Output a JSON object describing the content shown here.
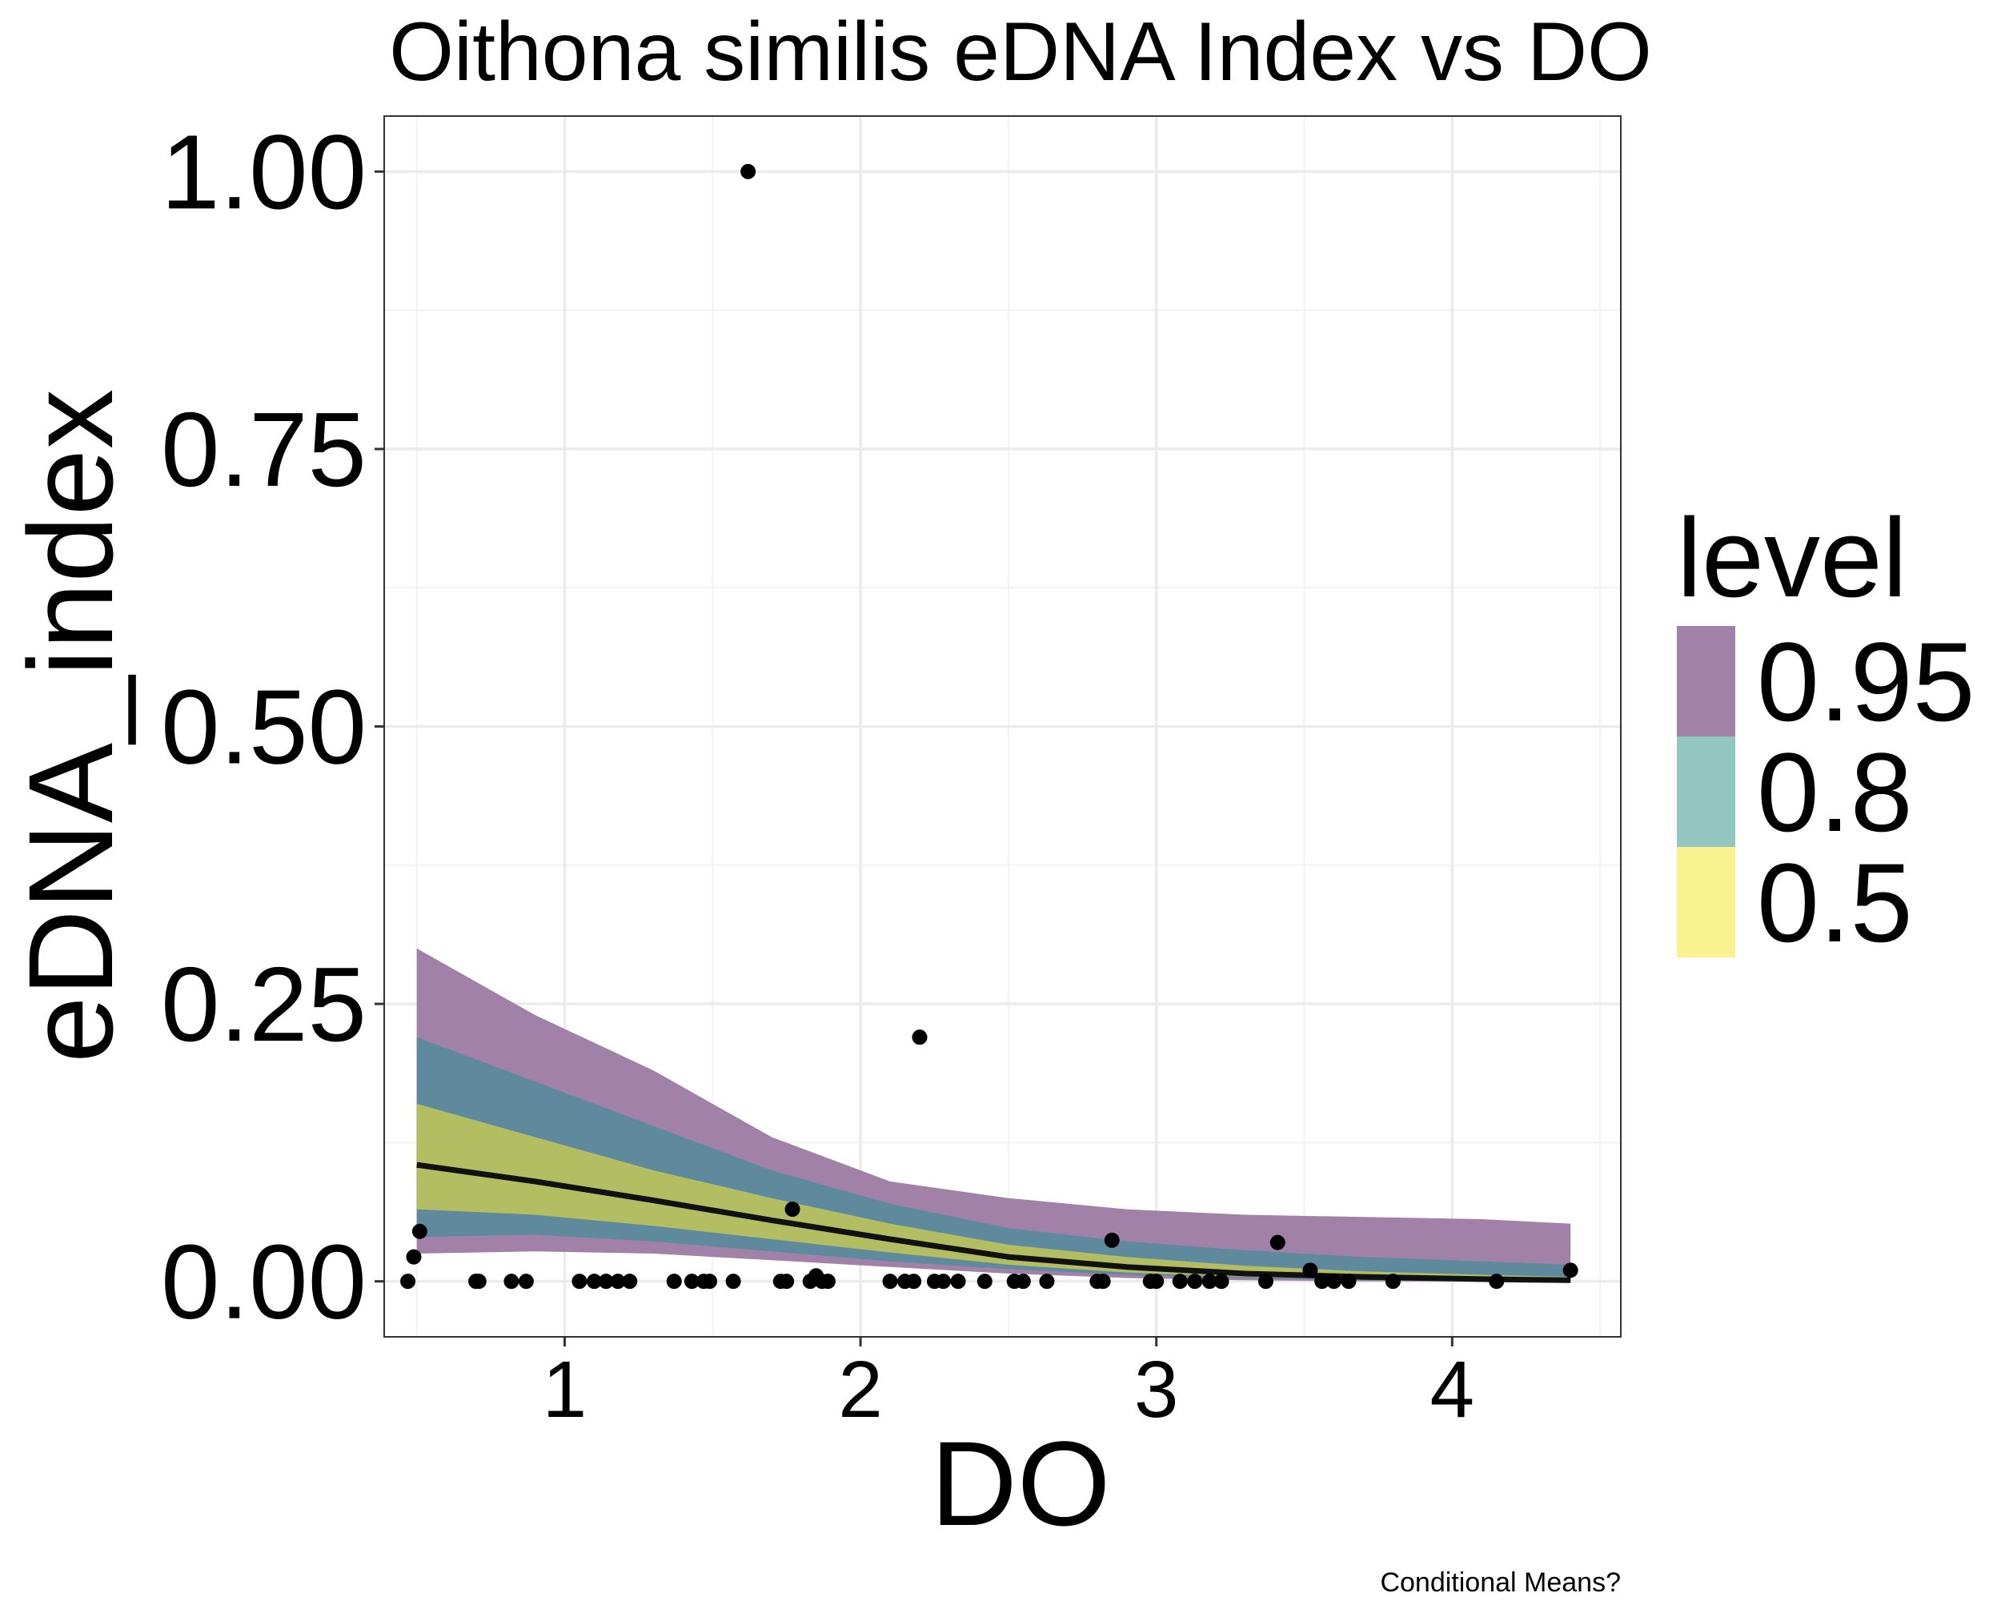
{
  "chart_data": {
    "type": "line",
    "title": "Oithona similis eDNA Index vs DO",
    "xlabel": "DO",
    "ylabel": "eDNA_index",
    "caption": "Conditional Means?",
    "xlim": [
      0.39,
      4.57
    ],
    "ylim": [
      -0.05,
      1.05
    ],
    "x_ticks": [
      1,
      2,
      3,
      4
    ],
    "x_tick_labels": [
      "1",
      "2",
      "3",
      "4"
    ],
    "y_ticks": [
      0,
      0.25,
      0.5,
      0.75,
      1.0
    ],
    "y_tick_labels": [
      "0.00",
      "0.25",
      "0.50",
      "0.75",
      "1.00"
    ],
    "grid": true,
    "legend": {
      "title": "level",
      "position": "right",
      "items": [
        {
          "label": "0.95",
          "color": "#A181A8"
        },
        {
          "label": "0.8",
          "color": "#93C6C1"
        },
        {
          "label": "0.5",
          "color": "#FAF290"
        }
      ]
    },
    "band_colors": {
      "0.95": "#A181A8",
      "0.8": "#5F8A9D",
      "0.5": "#B3BE63"
    },
    "fit_line": {
      "x": [
        0.5,
        0.9,
        1.3,
        1.7,
        2.1,
        2.5,
        2.9,
        3.3,
        3.7,
        4.1,
        4.4
      ],
      "y": [
        0.105,
        0.09,
        0.073,
        0.055,
        0.038,
        0.022,
        0.013,
        0.007,
        0.004,
        0.002,
        0.001
      ]
    },
    "bands": [
      {
        "level": "0.95",
        "x": [
          0.5,
          0.9,
          1.3,
          1.7,
          2.1,
          2.5,
          2.9,
          3.3,
          3.7,
          4.1,
          4.4
        ],
        "lower": [
          0.025,
          0.027,
          0.025,
          0.019,
          0.013,
          0.007,
          0.003,
          0.001,
          0.0,
          0.0,
          0.0
        ],
        "upper": [
          0.3,
          0.24,
          0.19,
          0.13,
          0.09,
          0.075,
          0.065,
          0.06,
          0.058,
          0.056,
          0.052
        ]
      },
      {
        "level": "0.8",
        "x": [
          0.5,
          0.9,
          1.3,
          1.7,
          2.1,
          2.5,
          2.9,
          3.3,
          3.7,
          4.1,
          4.4
        ],
        "lower": [
          0.04,
          0.042,
          0.036,
          0.027,
          0.018,
          0.011,
          0.006,
          0.003,
          0.001,
          0.0,
          0.0
        ],
        "upper": [
          0.22,
          0.18,
          0.14,
          0.1,
          0.07,
          0.048,
          0.036,
          0.028,
          0.022,
          0.018,
          0.015
        ]
      },
      {
        "level": "0.5",
        "x": [
          0.5,
          0.9,
          1.3,
          1.7,
          2.1,
          2.5,
          2.9,
          3.3,
          3.7,
          4.1,
          4.4
        ],
        "lower": [
          0.065,
          0.06,
          0.05,
          0.038,
          0.026,
          0.015,
          0.008,
          0.004,
          0.002,
          0.001,
          0.0
        ],
        "upper": [
          0.16,
          0.13,
          0.1,
          0.075,
          0.052,
          0.033,
          0.022,
          0.014,
          0.009,
          0.006,
          0.004
        ]
      }
    ],
    "points": {
      "x": [
        0.47,
        0.49,
        0.51,
        0.7,
        0.71,
        0.82,
        0.87,
        1.05,
        1.1,
        1.14,
        1.18,
        1.22,
        1.37,
        1.43,
        1.47,
        1.49,
        1.57,
        1.62,
        1.73,
        1.75,
        1.77,
        1.83,
        1.85,
        1.87,
        1.89,
        2.1,
        2.15,
        2.18,
        2.2,
        2.25,
        2.28,
        2.33,
        2.42,
        2.52,
        2.55,
        2.63,
        2.8,
        2.82,
        2.85,
        2.98,
        3.0,
        3.08,
        3.13,
        3.18,
        3.22,
        3.37,
        3.41,
        3.52,
        3.56,
        3.6,
        3.65,
        3.8,
        4.15,
        4.4
      ],
      "y": [
        0.0,
        0.022,
        0.045,
        0.0,
        0.0,
        0.0,
        0.0,
        0.0,
        0.0,
        0.0,
        0.0,
        0.0,
        0.0,
        0.0,
        0.0,
        0.0,
        0.0,
        1.0,
        0.0,
        0.0,
        0.065,
        0.0,
        0.005,
        0.0,
        0.0,
        0.0,
        0.0,
        0.0,
        0.22,
        0.0,
        0.0,
        0.0,
        0.0,
        0.0,
        0.0,
        0.0,
        0.0,
        0.0,
        0.037,
        0.0,
        0.0,
        0.0,
        0.0,
        0.0,
        0.0,
        0.0,
        0.035,
        0.01,
        0.0,
        0.0,
        0.0,
        0.0,
        0.0,
        0.01
      ]
    }
  }
}
